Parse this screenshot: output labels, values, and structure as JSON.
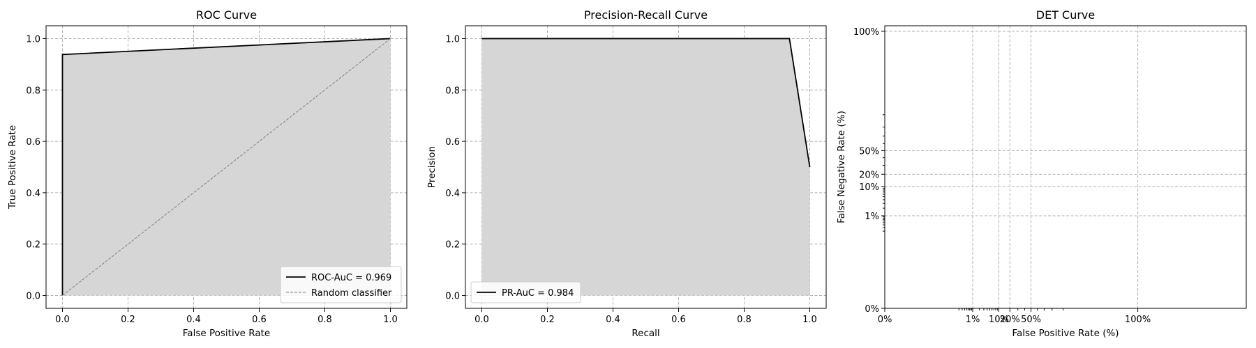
{
  "chart_data": [
    {
      "type": "line",
      "title": "ROC Curve",
      "xlabel": "False Positive Rate",
      "ylabel": "True Positive Rate",
      "xlim": [
        -0.05,
        1.05
      ],
      "ylim": [
        -0.05,
        1.05
      ],
      "xticks": [
        0.0,
        0.2,
        0.4,
        0.6,
        0.8,
        1.0
      ],
      "yticks": [
        0.0,
        0.2,
        0.4,
        0.6,
        0.8,
        1.0
      ],
      "xtick_labels": [
        "0.0",
        "0.2",
        "0.4",
        "0.6",
        "0.8",
        "1.0"
      ],
      "ytick_labels": [
        "0.0",
        "0.2",
        "0.4",
        "0.6",
        "0.8",
        "1.0"
      ],
      "grid": true,
      "legend_position": "lower right",
      "fill_color": "#d6d6d6",
      "series": [
        {
          "name": "ROC-AuC = 0.969",
          "x": [
            0.0,
            0.0,
            1.0
          ],
          "y": [
            0.0,
            0.938,
            1.0
          ],
          "color": "#000000",
          "style": "solid",
          "fill": true
        },
        {
          "name": "Random classifier",
          "x": [
            0.0,
            1.0
          ],
          "y": [
            0.0,
            1.0
          ],
          "color": "#808080",
          "style": "dashed",
          "fill": false
        }
      ]
    },
    {
      "type": "line",
      "title": "Precision-Recall Curve",
      "xlabel": "Recall",
      "ylabel": "Precision",
      "xlim": [
        -0.05,
        1.05
      ],
      "ylim": [
        -0.05,
        1.05
      ],
      "xticks": [
        0.0,
        0.2,
        0.4,
        0.6,
        0.8,
        1.0
      ],
      "yticks": [
        0.0,
        0.2,
        0.4,
        0.6,
        0.8,
        1.0
      ],
      "xtick_labels": [
        "0.0",
        "0.2",
        "0.4",
        "0.6",
        "0.8",
        "1.0"
      ],
      "ytick_labels": [
        "0.0",
        "0.2",
        "0.4",
        "0.6",
        "0.8",
        "1.0"
      ],
      "grid": true,
      "legend_position": "lower left",
      "fill_color": "#d6d6d6",
      "series": [
        {
          "name": "PR-AuC = 0.984",
          "x": [
            0.0,
            0.938,
            1.0
          ],
          "y": [
            1.0,
            1.0,
            0.5
          ],
          "color": "#000000",
          "style": "solid",
          "fill": true
        }
      ]
    },
    {
      "type": "line",
      "title": "DET Curve",
      "xlabel": "False Positive Rate (%)",
      "ylabel": "False Negative Rate (%)",
      "scale": "probit",
      "xticks": [
        0.0,
        0.01,
        0.1,
        0.2,
        0.5,
        1.0
      ],
      "yticks": [
        0.0,
        0.01,
        0.1,
        0.2,
        0.5,
        1.0
      ],
      "xtick_labels": [
        "0%",
        "1%",
        "10%",
        "20%",
        "50%",
        "100%"
      ],
      "ytick_labels": [
        "0%",
        "1%",
        "10%",
        "20%",
        "50%",
        "100%"
      ],
      "grid": true,
      "series": []
    }
  ]
}
